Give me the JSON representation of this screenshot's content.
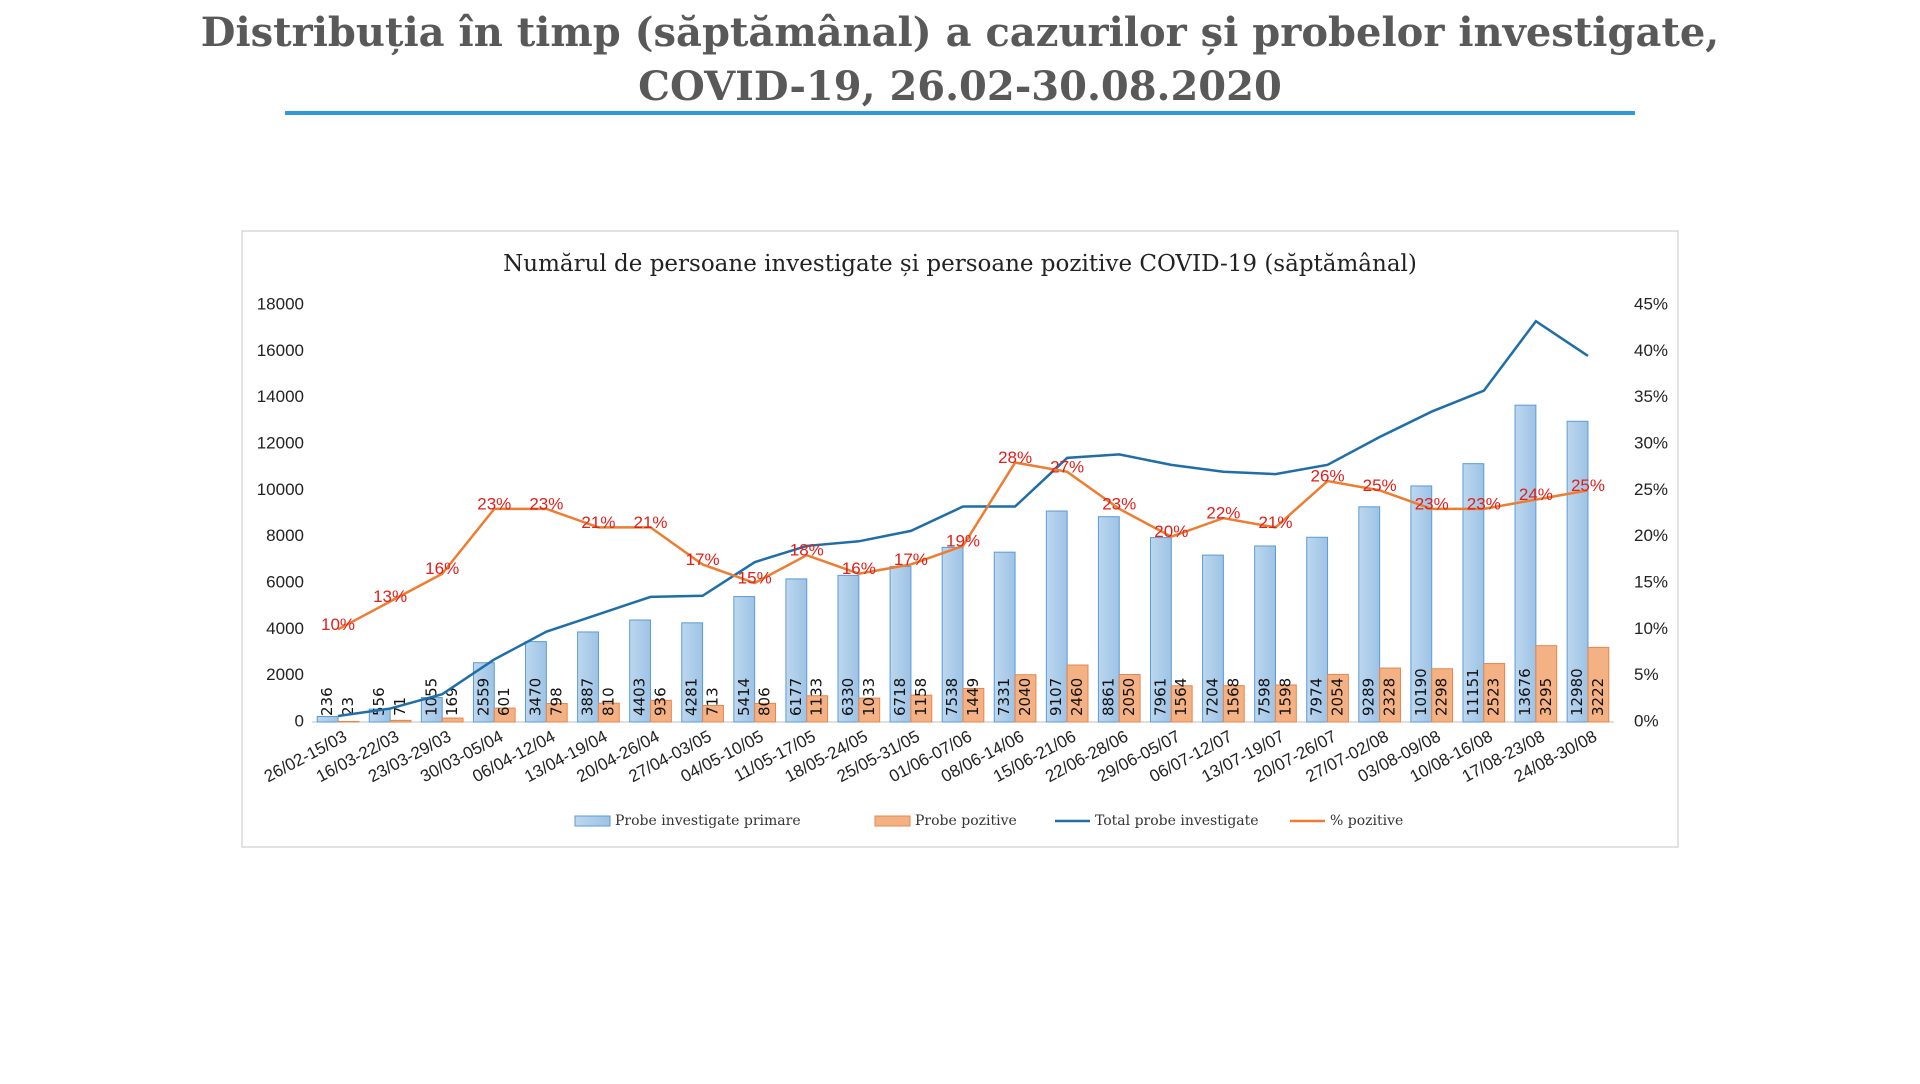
{
  "header": {
    "lines": [
      "Distribuția în timp (săptămânal) a cazurilor și probelor investigate,",
      "COVID-19, 26.02-30.08.2020"
    ]
  },
  "chart_data": {
    "type": "bar",
    "title": "Numărul de persoane investigate și persoane pozitive COVID-19 (săptămânal)",
    "categories": [
      "26/02-15/03",
      "16/03-22/03",
      "23/03-29/03",
      "30/03-05/04",
      "06/04-12/04",
      "13/04-19/04",
      "20/04-26/04",
      "27/04-03/05",
      "04/05-10/05",
      "11/05-17/05",
      "18/05-24/05",
      "25/05-31/05",
      "01/06-07/06",
      "08/06-14/06",
      "15/06-21/06",
      "22/06-28/06",
      "29/06-05/07",
      "06/07-12/07",
      "13/07-19/07",
      "20/07-26/07",
      "27/07-02/08",
      "03/08-09/08",
      "10/08-16/08",
      "17/08-23/08",
      "24/08-30/08"
    ],
    "series": [
      {
        "name": "Probe investigate primare",
        "type": "bar",
        "color": "#9dc3e6",
        "values": [
          236,
          556,
          1055,
          2559,
          3470,
          3887,
          4403,
          4281,
          5414,
          6177,
          6330,
          6718,
          7538,
          7331,
          9107,
          8861,
          7961,
          7204,
          7598,
          7974,
          9289,
          10190,
          11151,
          13676,
          12980
        ]
      },
      {
        "name": "Probe pozitive",
        "type": "bar",
        "color": "#f4b183",
        "values": [
          23,
          71,
          169,
          601,
          798,
          810,
          936,
          713,
          806,
          1133,
          1033,
          1158,
          1449,
          2040,
          2460,
          2050,
          1564,
          1568,
          1598,
          2054,
          2328,
          2298,
          2523,
          3295,
          3222
        ]
      },
      {
        "name": "Total probe investigate",
        "type": "line",
        "color": "#1f6ea8",
        "values": [
          260,
          580,
          1200,
          2700,
          3900,
          4650,
          5400,
          5450,
          6900,
          7600,
          7800,
          8250,
          9300,
          9300,
          11400,
          11550,
          11100,
          10800,
          10700,
          11100,
          12300,
          13400,
          14300,
          17300,
          15800
        ]
      },
      {
        "name": "% pozitive",
        "type": "line",
        "axis": "y2",
        "color": "#ed7d31",
        "values": [
          10,
          13,
          16,
          23,
          23,
          21,
          21,
          17,
          15,
          18,
          16,
          17,
          19,
          28,
          27,
          23,
          20,
          22,
          21,
          26,
          25,
          23,
          23,
          24,
          25
        ],
        "value_labels": [
          "10%",
          "13%",
          "16%",
          "23%",
          "23%",
          "21%",
          "21%",
          "17%",
          "15%",
          "18%",
          "16%",
          "17%",
          "19%",
          "28%",
          "27%",
          "23%",
          "20%",
          "22%",
          "21%",
          "26%",
          "25%",
          "23%",
          "23%",
          "24%",
          "25%"
        ]
      }
    ],
    "ylim": [
      0,
      18000
    ],
    "yticks": [
      0,
      2000,
      4000,
      6000,
      8000,
      10000,
      12000,
      14000,
      16000,
      18000
    ],
    "y2lim": [
      0,
      45
    ],
    "y2ticks": [
      {
        "value": 0,
        "label": "0%"
      },
      {
        "value": 5,
        "label": "5%"
      },
      {
        "value": 10,
        "label": "10%"
      },
      {
        "value": 15,
        "label": "15%"
      },
      {
        "value": 20,
        "label": "20%"
      },
      {
        "value": 25,
        "label": "25%"
      },
      {
        "value": 30,
        "label": "30%"
      },
      {
        "value": 35,
        "label": "35%"
      },
      {
        "value": 40,
        "label": "40%"
      },
      {
        "value": 45,
        "label": "45%"
      }
    ],
    "grid": false,
    "legend": "bottom"
  }
}
